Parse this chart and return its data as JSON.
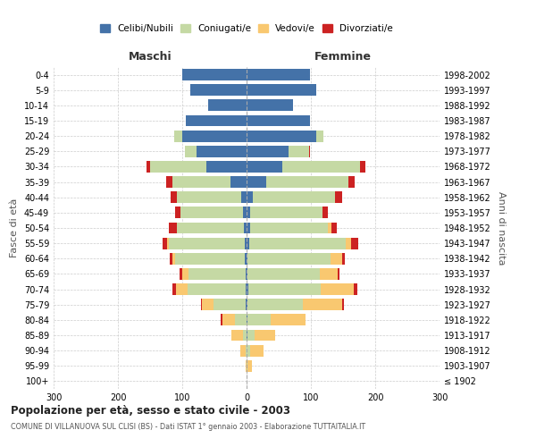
{
  "age_groups": [
    "100+",
    "95-99",
    "90-94",
    "85-89",
    "80-84",
    "75-79",
    "70-74",
    "65-69",
    "60-64",
    "55-59",
    "50-54",
    "45-49",
    "40-44",
    "35-39",
    "30-34",
    "25-29",
    "20-24",
    "15-19",
    "10-14",
    "5-9",
    "0-4"
  ],
  "birth_years": [
    "≤ 1902",
    "1903-1907",
    "1908-1912",
    "1913-1917",
    "1918-1922",
    "1923-1927",
    "1928-1932",
    "1933-1937",
    "1938-1942",
    "1943-1947",
    "1948-1952",
    "1953-1957",
    "1958-1962",
    "1963-1967",
    "1968-1972",
    "1973-1977",
    "1978-1982",
    "1983-1987",
    "1988-1992",
    "1993-1997",
    "1998-2002"
  ],
  "males_celibe": [
    0,
    0,
    0,
    0,
    0,
    1,
    2,
    2,
    3,
    3,
    4,
    5,
    8,
    25,
    62,
    78,
    100,
    95,
    60,
    88,
    100
  ],
  "males_coniugato": [
    0,
    0,
    2,
    5,
    18,
    50,
    90,
    88,
    108,
    118,
    105,
    98,
    100,
    90,
    88,
    18,
    12,
    0,
    0,
    0,
    0
  ],
  "males_vedovo": [
    0,
    2,
    8,
    18,
    20,
    18,
    18,
    10,
    4,
    2,
    0,
    0,
    0,
    0,
    0,
    0,
    0,
    0,
    0,
    0,
    0
  ],
  "males_divorziato": [
    0,
    0,
    0,
    0,
    2,
    2,
    5,
    4,
    5,
    8,
    12,
    8,
    10,
    10,
    5,
    0,
    0,
    0,
    0,
    0,
    0
  ],
  "females_nubile": [
    0,
    0,
    0,
    2,
    2,
    2,
    3,
    2,
    2,
    4,
    5,
    6,
    10,
    30,
    55,
    65,
    108,
    98,
    72,
    108,
    98
  ],
  "females_coniugata": [
    0,
    2,
    5,
    10,
    35,
    85,
    112,
    112,
    128,
    150,
    122,
    112,
    128,
    128,
    122,
    32,
    12,
    0,
    0,
    0,
    0
  ],
  "females_vedova": [
    0,
    6,
    22,
    32,
    55,
    62,
    52,
    28,
    18,
    8,
    5,
    0,
    0,
    0,
    0,
    0,
    0,
    0,
    0,
    0,
    0
  ],
  "females_divorziata": [
    0,
    0,
    0,
    0,
    0,
    2,
    5,
    2,
    5,
    12,
    8,
    8,
    10,
    10,
    8,
    2,
    0,
    0,
    0,
    0,
    0
  ],
  "color_celibe": "#4472a8",
  "color_coniugato": "#c5d9a4",
  "color_vedovo": "#f9c870",
  "color_divorziato": "#cc2222",
  "title": "Popolazione per età, sesso e stato civile - 2003",
  "subtitle": "COMUNE DI VILLANUOVA SUL CLISI (BS) - Dati ISTAT 1° gennaio 2003 - Elaborazione TUTTAITALIA.IT",
  "legend_labels": [
    "Celibi/Nubili",
    "Coniugati/e",
    "Vedovi/e",
    "Divorziati/e"
  ],
  "xlim": 300,
  "background_color": "#ffffff",
  "grid_color": "#cccccc"
}
